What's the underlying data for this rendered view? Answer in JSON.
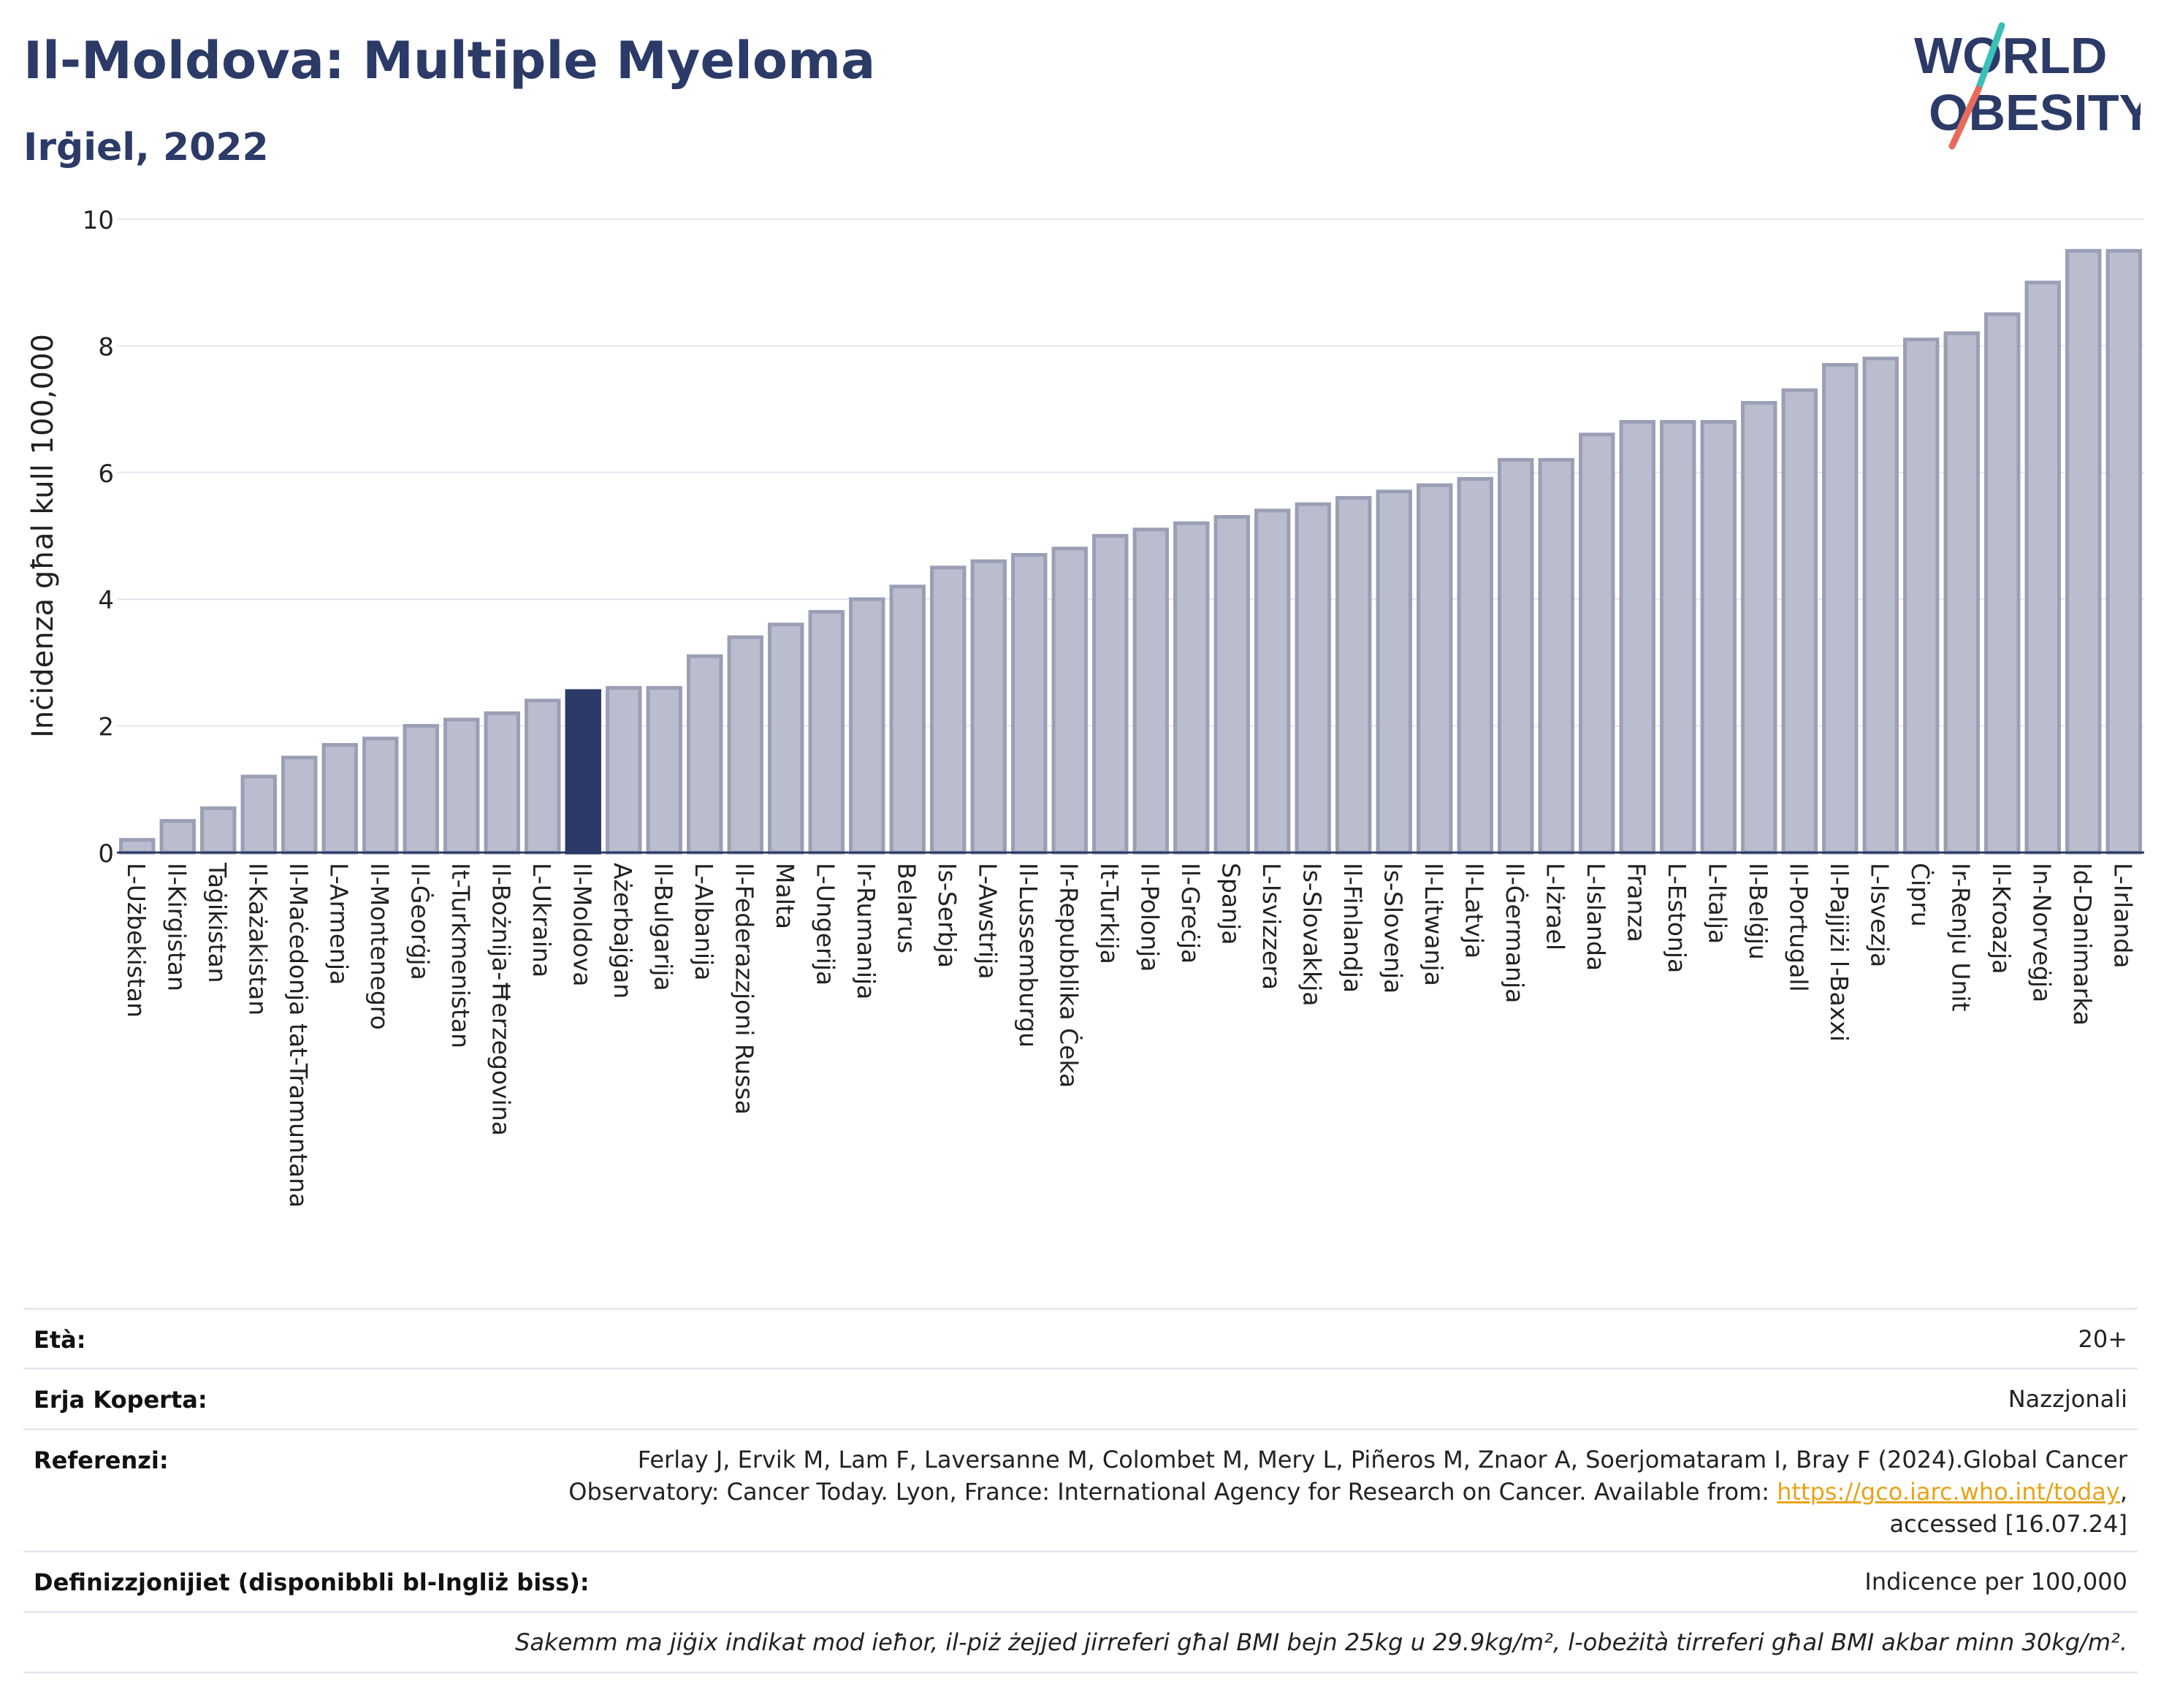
{
  "title": "Il-Moldova: Multiple Myeloma",
  "subtitle": "Irġiel, 2022",
  "logo": {
    "line1": "WORLD",
    "line2": "OBESITY",
    "colors": {
      "text": "#2b3a67",
      "slash_top": "#3bbfb8",
      "slash_bottom": "#e86a5a"
    }
  },
  "colors": {
    "bar": "#b9bdcd",
    "bar_edge": "#9a9fb6",
    "highlight": "#2b3a67",
    "grid": "#e6e7ee",
    "axis": "#2b3a67"
  },
  "chart_data": {
    "type": "bar",
    "ylabel": "Inċidenza għal kull 100,000",
    "xlabel": "",
    "ylim": [
      0,
      10
    ],
    "yticks": [
      0,
      2,
      4,
      6,
      8,
      10
    ],
    "grid": true,
    "highlight": "Il-Moldova",
    "categories": [
      "L-Użbekistan",
      "Il-Kirgistan",
      "Taġikistan",
      "Il-Każakistan",
      "Il-Maċedonja tat-Tramuntana",
      "L-Armenja",
      "Il-Montenegro",
      "Il-Ġeorġja",
      "It-Turkmenistan",
      "Il-Bożnija-Ħerzegovina",
      "L-Ukraina",
      "Il-Moldova",
      "Ażerbajġan",
      "Il-Bulgarija",
      "L-Albanija",
      "Il-Federazzjoni Russa",
      "Malta",
      "L-Ungerija",
      "Ir-Rumanija",
      "Belarus",
      "Is-Serbja",
      "L-Awstrija",
      "Il-Lussemburgu",
      "Ir-Repubblika Ċeka",
      "It-Turkija",
      "Il-Polonja",
      "Il-Greċja",
      "Spanja",
      "L-Isvizzera",
      "Is-Slovakkja",
      "Il-Finlandja",
      "Is-Slovenja",
      "Il-Litwanja",
      "Il-Latvja",
      "Il-Ġermanja",
      "L-Iżrael",
      "L-Islanda",
      "Franza",
      "L-Estonja",
      "L-Italja",
      "Il-Belġju",
      "Il-Portugall",
      "Il-Pajjiżi l-Baxxi",
      "L-Isvezja",
      "Ċipru",
      "Ir-Renju Unit",
      "Il-Kroazja",
      "In-Norveġja",
      "Id-Danimarka",
      "L-Irlanda"
    ],
    "values": [
      0.2,
      0.5,
      0.7,
      1.2,
      1.5,
      1.7,
      1.8,
      2.0,
      2.1,
      2.2,
      2.4,
      2.55,
      2.6,
      2.6,
      3.1,
      3.4,
      3.6,
      3.8,
      4.0,
      4.2,
      4.5,
      4.6,
      4.7,
      4.8,
      5.0,
      5.1,
      5.2,
      5.3,
      5.4,
      5.5,
      5.6,
      5.7,
      5.8,
      5.9,
      6.2,
      6.2,
      6.6,
      6.8,
      6.8,
      6.8,
      7.1,
      7.3,
      7.7,
      7.8,
      8.1,
      8.2,
      8.5,
      9.0,
      9.5,
      9.5
    ]
  },
  "meta": {
    "age_label": "Età:",
    "age_value": "20+",
    "coverage_label": "Erja Koperta:",
    "coverage_value": "Nazzjonali",
    "refs_label": "Referenzi:",
    "refs_line1": "Ferlay J, Ervik M, Lam F, Laversanne M, Colombet M, Mery L, Piñeros M, Znaor A, Soerjomataram I, Bray F (2024).Global Cancer",
    "refs_line2_pre": "Observatory: Cancer Today. Lyon, France: International Agency for Research on Cancer. Available from: ",
    "refs_link": "https://gco.iarc.who.int/today",
    "refs_line2_post": ",",
    "refs_line3": "accessed [16.07.24]",
    "defs_label": "Definizzjonijiet (disponibbli bl-Ingliż biss):",
    "defs_value": "Indicence per 100,000",
    "note": "Sakemm ma jiġix indikat mod ieħor, il-piż żejjed jirreferi għal BMI bejn 25kg u 29.9kg/m², l-obeżità tirreferi għal BMI akbar minn 30kg/m²."
  }
}
